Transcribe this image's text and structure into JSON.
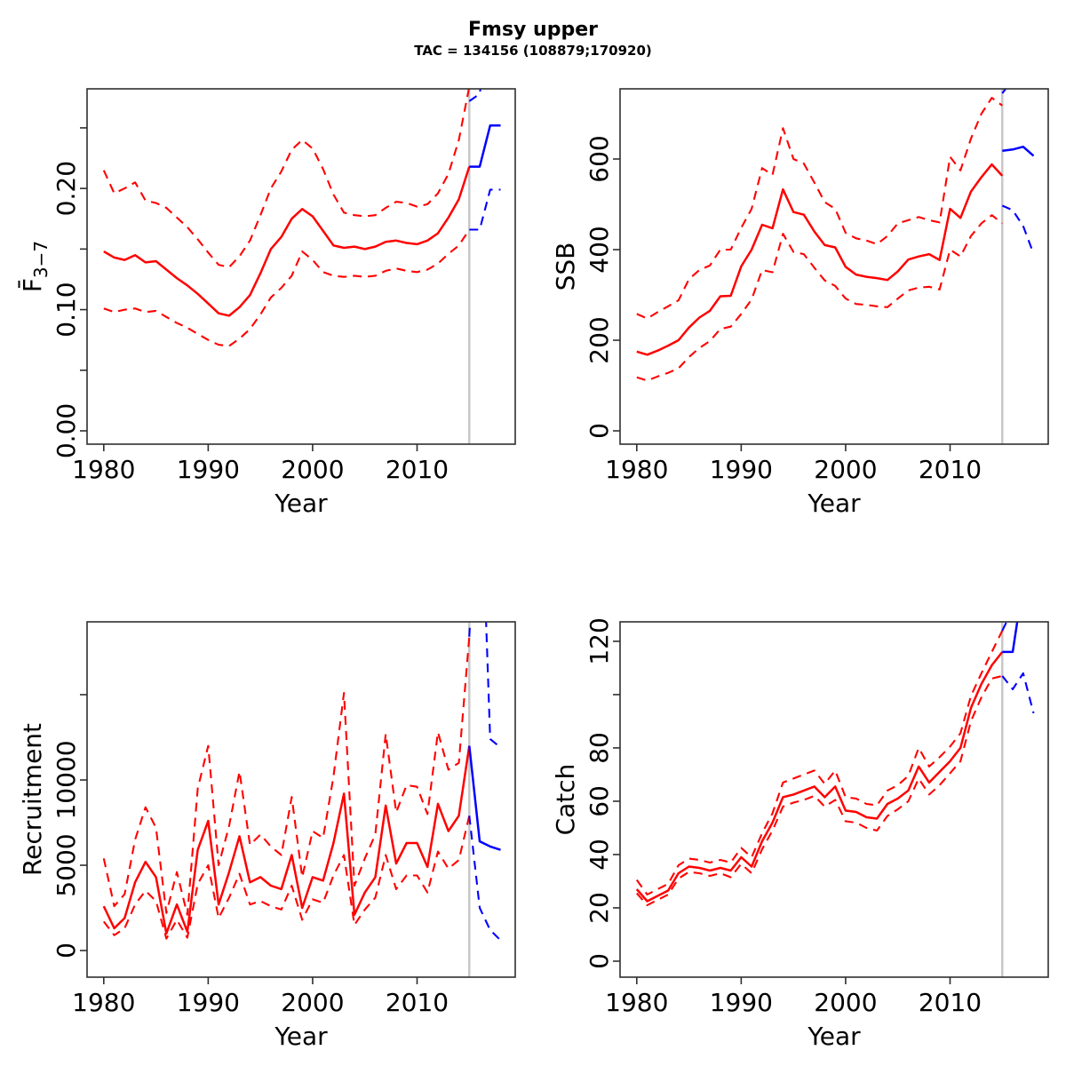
{
  "header": {
    "title": "Fmsy upper",
    "subtitle": "TAC = 134156 (108879;170920)"
  },
  "colors": {
    "estimate": "#ff0000",
    "forecast": "#0000ff",
    "divider": "#c8c8c8",
    "axis": "#2f2f2f",
    "text": "#000000"
  },
  "chart_data": [
    {
      "type": "line",
      "id": "fbar",
      "ylab": "F̄",
      "ylab_sub": "3−7",
      "xlab": "Year",
      "xlim": [
        1978.4,
        2019.4
      ],
      "ylim": [
        -0.011,
        0.2822
      ],
      "xticks": [
        1980,
        1990,
        2000,
        2010
      ],
      "xtick_labels": [
        "1980",
        "1990",
        "2000",
        "2010"
      ],
      "yticks": [
        0,
        0.05,
        0.1,
        0.15,
        0.2,
        0.25
      ],
      "ytick_labels": [
        "0.00",
        null,
        "0.10",
        null,
        "0.20",
        null
      ],
      "divider_x": 2015,
      "grid": false,
      "legend": "none",
      "series": {
        "ci_high": {
          "start": 1980,
          "values": [
            0.215,
            0.196,
            0.2,
            0.205,
            0.19,
            0.188,
            0.184,
            0.176,
            0.168,
            0.158,
            0.147,
            0.137,
            0.135,
            0.144,
            0.157,
            0.178,
            0.2,
            0.214,
            0.232,
            0.24,
            0.233,
            0.216,
            0.195,
            0.18,
            0.178,
            0.177,
            0.178,
            0.184,
            0.189,
            0.188,
            0.185,
            0.187,
            0.196,
            0.212,
            0.24,
            0.284
          ]
        },
        "ci_low": {
          "start": 1980,
          "values": [
            0.101,
            0.098,
            0.1,
            0.101,
            0.098,
            0.099,
            0.094,
            0.089,
            0.085,
            0.08,
            0.075,
            0.071,
            0.07,
            0.076,
            0.084,
            0.096,
            0.11,
            0.118,
            0.128,
            0.148,
            0.141,
            0.131,
            0.128,
            0.127,
            0.128,
            0.127,
            0.128,
            0.132,
            0.134,
            0.132,
            0.131,
            0.133,
            0.138,
            0.146,
            0.153,
            0.166
          ]
        },
        "median": {
          "start": 1980,
          "values": [
            0.148,
            0.143,
            0.141,
            0.145,
            0.139,
            0.14,
            0.133,
            0.126,
            0.12,
            0.113,
            0.105,
            0.097,
            0.095,
            0.102,
            0.112,
            0.13,
            0.15,
            0.16,
            0.175,
            0.183,
            0.177,
            0.165,
            0.153,
            0.151,
            0.152,
            0.15,
            0.152,
            0.156,
            0.157,
            0.155,
            0.154,
            0.157,
            0.163,
            0.176,
            0.191,
            0.218
          ]
        },
        "forecast_high": {
          "start": 2015,
          "values": [
            0.272,
            0.278,
            0.34,
            0.34
          ]
        },
        "forecast_low": {
          "start": 2015,
          "values": [
            0.166,
            0.166,
            0.199,
            0.199
          ]
        },
        "forecast_median": {
          "start": 2015,
          "values": [
            0.218,
            0.218,
            0.252,
            0.252
          ]
        }
      }
    },
    {
      "type": "line",
      "id": "ssb",
      "ylab": "SSB",
      "ylab_sub": null,
      "xlab": "Year",
      "xlim": [
        1978.4,
        2019.4
      ],
      "ylim": [
        -29.4,
        754.9
      ],
      "xticks": [
        1980,
        1990,
        2000,
        2010
      ],
      "xtick_labels": [
        "1980",
        "1990",
        "2000",
        "2010"
      ],
      "yticks": [
        0,
        200,
        400,
        600
      ],
      "ytick_labels": [
        "0",
        "200",
        "400",
        "600"
      ],
      "divider_x": 2015,
      "grid": false,
      "legend": "none",
      "series": {
        "ci_high": {
          "start": 1980,
          "values": [
            258,
            248,
            262,
            275,
            288,
            335,
            355,
            365,
            400,
            400,
            448,
            490,
            580,
            565,
            668,
            600,
            590,
            548,
            505,
            490,
            437,
            425,
            420,
            412,
            430,
            458,
            465,
            472,
            465,
            460,
            605,
            575,
            645,
            700,
            735,
            718
          ]
        },
        "ci_low": {
          "start": 1980,
          "values": [
            118,
            111,
            120,
            128,
            138,
            163,
            183,
            198,
            225,
            230,
            258,
            290,
            355,
            350,
            435,
            395,
            390,
            360,
            332,
            320,
            292,
            280,
            278,
            275,
            273,
            292,
            310,
            316,
            318,
            312,
            400,
            385,
            430,
            458,
            476,
            458
          ]
        },
        "median": {
          "start": 1980,
          "values": [
            175,
            168,
            177,
            188,
            200,
            228,
            250,
            265,
            297,
            298,
            363,
            400,
            455,
            447,
            533,
            483,
            477,
            440,
            410,
            405,
            362,
            345,
            340,
            337,
            333,
            352,
            378,
            385,
            390,
            377,
            490,
            470,
            528,
            560,
            588,
            563
          ]
        },
        "forecast_high": {
          "start": 2015,
          "values": [
            745,
            775,
            800,
            790
          ]
        },
        "forecast_low": {
          "start": 2015,
          "values": [
            497,
            487,
            452,
            391
          ]
        },
        "forecast_median": {
          "start": 2015,
          "values": [
            618,
            621,
            627,
            607
          ]
        }
      }
    },
    {
      "type": "line",
      "id": "recruitment",
      "ylab": "Recruitment",
      "ylab_sub": null,
      "xlab": "Year",
      "xlim": [
        1978.4,
        2019.4
      ],
      "ylim": [
        -1562,
        19271
      ],
      "xticks": [
        1980,
        1990,
        2000,
        2010
      ],
      "xtick_labels": [
        "1980",
        "1990",
        "2000",
        "2010"
      ],
      "yticks": [
        0,
        5000,
        10000,
        15000
      ],
      "ytick_labels": [
        "0",
        "5000",
        "10000",
        null
      ],
      "divider_x": 2015,
      "grid": false,
      "legend": "none",
      "series": {
        "ci_high": {
          "start": 1980,
          "values": [
            5400,
            2600,
            3300,
            6500,
            8400,
            7200,
            2200,
            4600,
            2100,
            9500,
            12000,
            5000,
            7300,
            10500,
            6200,
            6800,
            6100,
            5600,
            9000,
            4300,
            7000,
            6600,
            10200,
            15100,
            3800,
            5400,
            6800,
            12700,
            8100,
            9700,
            9600,
            8000,
            12800,
            10600,
            11000,
            18400
          ]
        },
        "ci_low": {
          "start": 1980,
          "values": [
            1700,
            900,
            1300,
            2700,
            3500,
            2900,
            700,
            1800,
            750,
            3900,
            5000,
            1900,
            3100,
            4500,
            2700,
            2900,
            2600,
            2400,
            3800,
            1800,
            3000,
            2800,
            4400,
            5600,
            1500,
            2400,
            3100,
            5600,
            3600,
            4400,
            4400,
            3400,
            5800,
            4800,
            5300,
            7900
          ]
        },
        "median": {
          "start": 1980,
          "values": [
            2600,
            1300,
            1900,
            4000,
            5200,
            4300,
            1000,
            2700,
            1100,
            5900,
            7600,
            2700,
            4600,
            6700,
            4000,
            4300,
            3800,
            3600,
            5600,
            2500,
            4300,
            4100,
            6300,
            9200,
            2100,
            3400,
            4300,
            8500,
            5100,
            6300,
            6300,
            4900,
            8600,
            7000,
            7900,
            12000
          ]
        },
        "forecast_high": {
          "start": 2015,
          "values": [
            18400,
            30000,
            12400,
            11900
          ]
        },
        "forecast_low": {
          "start": 2015,
          "values": [
            7900,
            2500,
            1200,
            600
          ]
        },
        "forecast_median": {
          "start": 2015,
          "values": [
            12000,
            6400,
            6100,
            5900
          ]
        }
      }
    },
    {
      "type": "line",
      "id": "catch",
      "ylab": "Catch",
      "ylab_sub": null,
      "xlab": "Year",
      "xlim": [
        1978.4,
        2019.4
      ],
      "ylim": [
        -6,
        127.3
      ],
      "xticks": [
        1980,
        1990,
        2000,
        2010
      ],
      "xtick_labels": [
        "1980",
        "1990",
        "2000",
        "2010"
      ],
      "yticks": [
        0,
        20,
        40,
        60,
        80,
        100,
        120
      ],
      "ytick_labels": [
        "0",
        "20",
        "40",
        "60",
        "80",
        null,
        "120"
      ],
      "divider_x": 2015,
      "grid": false,
      "legend": "none",
      "series": {
        "ci_high": {
          "start": 1980,
          "values": [
            30.5,
            25,
            27,
            29,
            36,
            38.5,
            38,
            37,
            38,
            37,
            42.5,
            39,
            48,
            55.5,
            67,
            68.5,
            70,
            71.5,
            66.5,
            71.5,
            61.5,
            61,
            59,
            58.5,
            64,
            66,
            69.5,
            80,
            73,
            76.5,
            80.5,
            85.5,
            99.5,
            108,
            116,
            124
          ]
        },
        "ci_low": {
          "start": 1980,
          "values": [
            25.5,
            21,
            23,
            25,
            31,
            33.5,
            33,
            32,
            33,
            31.5,
            36.5,
            33,
            42,
            49,
            58,
            59.5,
            60.5,
            62,
            58,
            60.5,
            52.5,
            52,
            50,
            49,
            54.5,
            57,
            60,
            68.5,
            62.5,
            66,
            70.5,
            75,
            90,
            99,
            106,
            107
          ]
        },
        "median": {
          "start": 1980,
          "values": [
            27,
            22.5,
            24.5,
            26.5,
            33,
            35.5,
            35,
            34,
            35,
            34,
            39,
            35.5,
            45,
            52,
            61.5,
            62.5,
            64,
            65.5,
            61.5,
            65.5,
            56.5,
            56,
            54,
            53.5,
            59,
            61,
            64,
            73,
            67,
            71,
            75,
            80,
            95,
            104,
            111,
            116
          ]
        },
        "forecast_high": {
          "start": 2015,
          "values": [
            124,
            132,
            142,
            142
          ]
        },
        "forecast_low": {
          "start": 2015,
          "values": [
            107,
            102,
            108,
            93
          ]
        },
        "forecast_median": {
          "start": 2015,
          "values": [
            116,
            116,
            142,
            142
          ]
        }
      }
    }
  ]
}
